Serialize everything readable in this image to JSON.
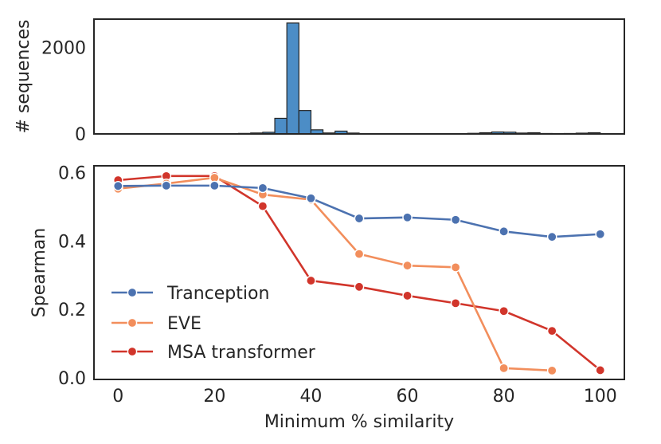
{
  "chart_data": [
    {
      "type": "bar",
      "title": "",
      "xlabel": "",
      "ylabel": "# sequences",
      "xlim": [
        -5,
        105
      ],
      "ylim": [
        0,
        2650
      ],
      "yticks": [
        0,
        2000
      ],
      "bin_width": 2.5,
      "bins": [
        {
          "x0": 0,
          "count": 0
        },
        {
          "x0": 2.5,
          "count": 0
        },
        {
          "x0": 5,
          "count": 0
        },
        {
          "x0": 7.5,
          "count": 0
        },
        {
          "x0": 10,
          "count": 0
        },
        {
          "x0": 12.5,
          "count": 0
        },
        {
          "x0": 15,
          "count": 0
        },
        {
          "x0": 17.5,
          "count": 0
        },
        {
          "x0": 20,
          "count": 0
        },
        {
          "x0": 22.5,
          "count": 0
        },
        {
          "x0": 25,
          "count": 12
        },
        {
          "x0": 27.5,
          "count": 22
        },
        {
          "x0": 30,
          "count": 38
        },
        {
          "x0": 32.5,
          "count": 360
        },
        {
          "x0": 35,
          "count": 2560
        },
        {
          "x0": 37.5,
          "count": 540
        },
        {
          "x0": 40,
          "count": 95
        },
        {
          "x0": 42.5,
          "count": 22
        },
        {
          "x0": 45,
          "count": 65
        },
        {
          "x0": 47.5,
          "count": 20
        },
        {
          "x0": 50,
          "count": 8
        },
        {
          "x0": 52.5,
          "count": 4
        },
        {
          "x0": 55,
          "count": 3
        },
        {
          "x0": 57.5,
          "count": 2
        },
        {
          "x0": 60,
          "count": 2
        },
        {
          "x0": 62.5,
          "count": 5
        },
        {
          "x0": 65,
          "count": 3
        },
        {
          "x0": 67.5,
          "count": 3
        },
        {
          "x0": 70,
          "count": 8
        },
        {
          "x0": 72.5,
          "count": 14
        },
        {
          "x0": 75,
          "count": 28
        },
        {
          "x0": 77.5,
          "count": 45
        },
        {
          "x0": 80,
          "count": 40
        },
        {
          "x0": 82.5,
          "count": 20
        },
        {
          "x0": 85,
          "count": 28
        },
        {
          "x0": 87.5,
          "count": 10
        },
        {
          "x0": 90,
          "count": 8
        },
        {
          "x0": 92.5,
          "count": 10
        },
        {
          "x0": 95,
          "count": 18
        },
        {
          "x0": 97.5,
          "count": 28
        }
      ]
    },
    {
      "type": "line",
      "title": "",
      "xlabel": "Minimum % similarity",
      "ylabel": "Spearman",
      "xlim": [
        -5,
        105
      ],
      "ylim": [
        -0.005,
        0.62
      ],
      "xticks": [
        0,
        20,
        40,
        60,
        80,
        100
      ],
      "yticks": [
        0.0,
        0.2,
        0.4,
        0.6
      ],
      "legend_position": "lower-left",
      "series": [
        {
          "name": "Tranception",
          "color": "#4c72b0",
          "x": [
            0,
            10,
            20,
            30,
            40,
            50,
            60,
            70,
            80,
            90,
            100
          ],
          "y": [
            0.561,
            0.562,
            0.562,
            0.555,
            0.525,
            0.466,
            0.469,
            0.462,
            0.428,
            0.412,
            0.42
          ]
        },
        {
          "name": "EVE",
          "color": "#f28e5c",
          "x": [
            0,
            10,
            20,
            30,
            40,
            50,
            60,
            70,
            80,
            90
          ],
          "y": [
            0.553,
            0.568,
            0.585,
            0.536,
            0.521,
            0.362,
            0.328,
            0.323,
            0.028,
            0.021
          ]
        },
        {
          "name": "MSA transformer",
          "color": "#d1352b",
          "x": [
            0,
            10,
            20,
            30,
            40,
            50,
            60,
            70,
            80,
            90,
            100
          ],
          "y": [
            0.578,
            0.59,
            0.59,
            0.502,
            0.284,
            0.266,
            0.24,
            0.218,
            0.195,
            0.137,
            0.022
          ]
        }
      ]
    }
  ]
}
